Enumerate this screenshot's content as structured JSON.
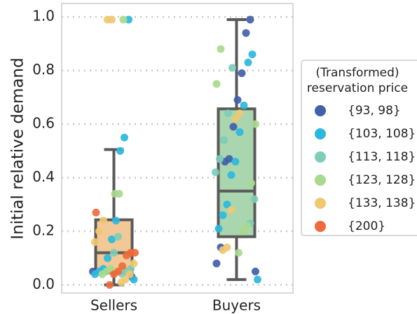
{
  "chart_data": {
    "type": "box",
    "y_label": "Initial relative demand",
    "categories": [
      "Sellers",
      "Buyers"
    ],
    "ylim": [
      -0.03,
      1.05
    ],
    "yticks": [
      {
        "value": 0,
        "label": "0.0"
      },
      {
        "value": 0.2,
        "label": "0.2"
      },
      {
        "value": 0.4,
        "label": "0.4"
      },
      {
        "value": 0.6,
        "label": "0.6"
      },
      {
        "value": 0.8,
        "label": "0.8"
      },
      {
        "value": 1,
        "label": "1.0"
      }
    ],
    "grid": true,
    "boxes": [
      {
        "whislo": 0.0,
        "q1": 0.045,
        "med": 0.12,
        "q3": 0.243,
        "whishi": 0.505,
        "color": "#f2c896"
      },
      {
        "whislo": 0.02,
        "q1": 0.18,
        "med": 0.35,
        "q3": 0.657,
        "whishi": 0.99,
        "color": "#a9d6ae"
      }
    ],
    "legend_title": [
      "(Transformed)",
      "reservation price"
    ],
    "legend_position": "right",
    "series": [
      {
        "name": "{93, 98}",
        "color": "#4060aa",
        "values": [
          [
            0.05,
            0.03
          ],
          [
            0.99,
            0.94,
            0.79,
            0.69,
            0.59,
            0.47,
            0.46,
            0.14,
            0.08,
            0.05
          ]
        ]
      },
      {
        "name": "{103, 108}",
        "color": "#2bb8de",
        "values": [
          [
            0.99,
            0.55,
            0.5,
            0.24,
            0.17,
            0.1,
            0.06,
            0.05,
            0.04,
            0.02
          ],
          [
            0.86,
            0.83,
            0.67,
            0.57,
            0.46,
            0.41,
            0.3,
            0.26,
            0.21,
            0.02
          ]
        ]
      },
      {
        "name": "{113, 118}",
        "color": "#7dcdb8",
        "values": [
          [
            0.06,
            0.05,
            0.04,
            0.18,
            0.12
          ],
          [
            0.81,
            0.64,
            0.54,
            0.47,
            0.42,
            0.32,
            0.23
          ]
        ]
      },
      {
        "name": "{123, 128}",
        "color": "#a9d98e",
        "values": [
          [
            0.99,
            0.34,
            0.34,
            0.06,
            0.05,
            0.04
          ],
          [
            0.88,
            0.75,
            0.6,
            0.38,
            0.22,
            0.2,
            0.12
          ]
        ]
      },
      {
        "name": "{133, 138}",
        "color": "#f0c872",
        "values": [
          [
            0.99,
            0.99,
            0.24,
            0.2,
            0.16,
            0.08,
            0.04,
            0.02,
            0.01
          ],
          [
            0.64,
            0.62,
            0.28,
            0.14,
            0.13
          ]
        ]
      },
      {
        "name": "{200}",
        "color": "#ef6a3c",
        "values": [
          [
            0.27,
            0.12,
            0.12,
            0.11,
            0.07,
            0.05,
            0.04,
            0.0
          ],
          []
        ]
      }
    ]
  }
}
